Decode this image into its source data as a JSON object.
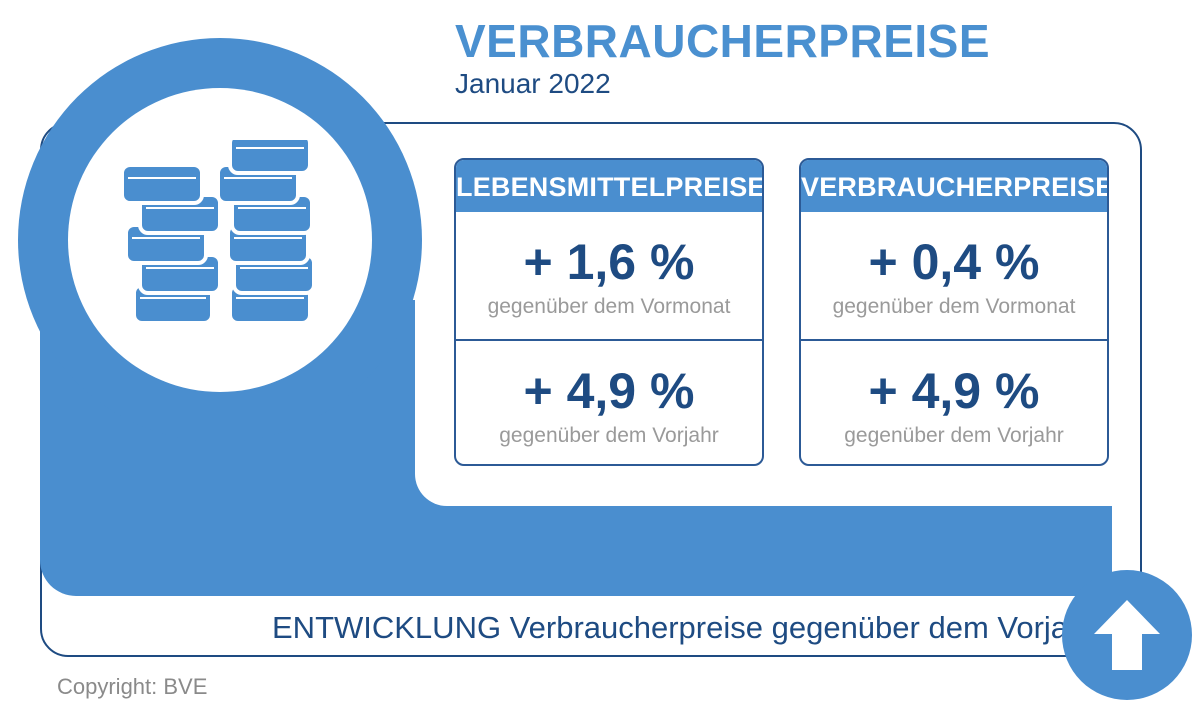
{
  "header": {
    "title": "VERBRAUCHERPREISE",
    "subtitle": "Januar 2022"
  },
  "icons": {
    "main": "coins-stack-icon",
    "trend": "arrow-up-icon"
  },
  "colors": {
    "accent": "#4a8ecf",
    "dark_blue": "#1e4b82",
    "note_gray": "#9a9a9a"
  },
  "cards": [
    {
      "title": "LEBENSMITTELPREISE",
      "rows": [
        {
          "value": "+ 1,6 %",
          "note": "gegenüber dem Vormonat"
        },
        {
          "value": "+ 4,9 %",
          "note": "gegenüber dem Vorjahr"
        }
      ]
    },
    {
      "title": "VERBRAUCHERPREISE",
      "rows": [
        {
          "value": "+ 0,4 %",
          "note": "gegenüber dem Vormonat"
        },
        {
          "value": "+ 4,9 %",
          "note": "gegenüber dem Vorjahr"
        }
      ]
    }
  ],
  "footer": {
    "trend_text": "ENTWICKLUNG Verbraucherpreise gegenüber dem Vorjahr:",
    "copyright": "Copyright: BVE"
  }
}
